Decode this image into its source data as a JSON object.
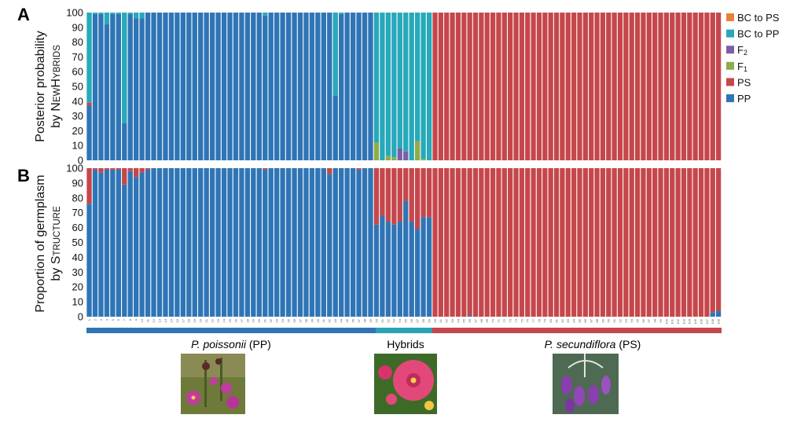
{
  "chart_data": [
    {
      "panel": "A",
      "type": "bar",
      "stacked": true,
      "ylabel": "Posterior probability",
      "ylabel_line2_prefix": "by ",
      "ylabel_line2_first": "N",
      "ylabel_line2_smallcaps_1": "EW",
      "ylabel_line2_cap_2": "H",
      "ylabel_line2_smallcaps_2": "YBRIDS",
      "ylim": [
        0,
        100
      ],
      "yticks": [
        "0",
        "10",
        "20",
        "30",
        "40",
        "50",
        "60",
        "70",
        "80",
        "90",
        "100"
      ],
      "n_individuals": 109,
      "stack_order_bottom_to_top": [
        "PP",
        "PS",
        "F1",
        "F2",
        "BC to PP",
        "BC to PS"
      ],
      "series_values_note": "percent per individual",
      "groups": [
        {
          "name": "PP",
          "range": [
            1,
            49
          ],
          "default": {
            "PP": 100
          }
        },
        {
          "name": "Hybrids",
          "range": [
            50,
            59
          ],
          "default": {
            "BC to PP": 100
          }
        },
        {
          "name": "PS",
          "range": [
            60,
            109
          ],
          "default": {
            "PS": 100
          }
        }
      ],
      "overrides": {
        "1": {
          "PP": 37,
          "PS": 2,
          "BC to PP": 61
        },
        "2": {
          "PP": 99,
          "BC to PP": 1
        },
        "3": {
          "PP": 99,
          "BC to PP": 1
        },
        "4": {
          "PP": 92,
          "BC to PP": 8
        },
        "5": {
          "PP": 99,
          "BC to PP": 1
        },
        "6": {
          "PP": 99,
          "BC to PP": 1
        },
        "7": {
          "PP": 25,
          "BC to PP": 75
        },
        "8": {
          "PP": 99,
          "BC to PP": 1
        },
        "9": {
          "PP": 96,
          "BC to PP": 4
        },
        "10": {
          "PP": 96,
          "BC to PP": 4
        },
        "31": {
          "PP": 98,
          "BC to PP": 2
        },
        "43": {
          "PP": 44,
          "BC to PP": 56
        },
        "44": {
          "PP": 99,
          "BC to PP": 1
        },
        "50": {
          "F1": 12,
          "BC to PP": 88
        },
        "51": {
          "BC to PP": 100
        },
        "52": {
          "F1": 3,
          "BC to PP": 97
        },
        "53": {
          "F1": 2,
          "BC to PP": 98
        },
        "54": {
          "F2": 8,
          "BC to PP": 92
        },
        "55": {
          "F2": 6,
          "BC to PP": 94
        },
        "56": {
          "BC to PP": 100
        },
        "57": {
          "F1": 13,
          "BC to PP": 87
        },
        "58": {
          "F1": 1,
          "BC to PP": 99
        },
        "59": {
          "BC to PP": 100
        }
      }
    },
    {
      "panel": "B",
      "type": "bar",
      "stacked": true,
      "ylabel": "Proportion of germplasm",
      "ylabel_line2_prefix": "by ",
      "ylabel_line2_first": "S",
      "ylabel_line2_smallcaps_1": "TRUCTURE",
      "ylim": [
        0,
        100
      ],
      "yticks": [
        "0",
        "10",
        "20",
        "30",
        "40",
        "50",
        "60",
        "70",
        "80",
        "90",
        "100"
      ],
      "n_individuals": 109,
      "stack_order_bottom_to_top": [
        "PP",
        "PS"
      ],
      "groups": [
        {
          "name": "PP",
          "range": [
            1,
            49
          ],
          "default": {
            "PP": 100
          }
        },
        {
          "name": "Hybrids",
          "range": [
            50,
            59
          ],
          "default": {
            "PP": 65
          }
        },
        {
          "name": "PS",
          "range": [
            60,
            109
          ],
          "default": {
            "PP": 0
          }
        }
      ],
      "overrides_pp_percent": {
        "1": 76,
        "2": 99,
        "3": 97,
        "4": 99,
        "5": 99,
        "6": 99,
        "7": 89,
        "8": 98,
        "9": 94,
        "10": 97,
        "11": 99,
        "31": 99,
        "42": 96,
        "47": 99,
        "50": 62,
        "51": 68,
        "52": 64,
        "53": 62,
        "54": 64,
        "55": 78,
        "56": 64,
        "57": 59,
        "58": 67,
        "59": 67,
        "66": 1,
        "108": 3,
        "109": 4
      },
      "xticks": [
        "1",
        "2",
        "3",
        "4",
        "5",
        "6",
        "7",
        "8",
        "9",
        "10",
        "11",
        "12",
        "13",
        "14",
        "15",
        "16",
        "17",
        "18",
        "19",
        "20",
        "21",
        "22",
        "23",
        "24",
        "25",
        "26",
        "27",
        "28",
        "29",
        "30",
        "31",
        "32",
        "33",
        "34",
        "35",
        "36",
        "37",
        "38",
        "39",
        "40",
        "41",
        "42",
        "43",
        "44",
        "45",
        "46",
        "47",
        "48",
        "49",
        "50",
        "51",
        "52",
        "53",
        "54",
        "55",
        "56",
        "57",
        "58",
        "59",
        "60",
        "61",
        "62",
        "63",
        "64",
        "65",
        "66",
        "67",
        "68",
        "69",
        "70",
        "71",
        "72",
        "73",
        "74",
        "75",
        "76",
        "77",
        "78",
        "79",
        "80",
        "81",
        "82",
        "83",
        "84",
        "85",
        "86",
        "87",
        "88",
        "89",
        "90",
        "91",
        "92",
        "93",
        "94",
        "95",
        "96",
        "97",
        "98",
        "99",
        "100",
        "101",
        "102",
        "103",
        "104",
        "105",
        "106",
        "107",
        "108",
        "109"
      ]
    }
  ],
  "legend": [
    {
      "label": "BC to PS",
      "color": "#e8813a"
    },
    {
      "label": "BC to PP",
      "color": "#27a9ba"
    },
    {
      "label": "F",
      "sub": "2",
      "color": "#7b5ea8"
    },
    {
      "label": "F",
      "sub": "1",
      "color": "#8fab4a"
    },
    {
      "label": "PS",
      "color": "#c5474b"
    },
    {
      "label": "PP",
      "color": "#2f75b6"
    }
  ],
  "colors": {
    "PP": "#2f75b6",
    "PS": "#c5474b",
    "F1": "#8fab4a",
    "F2": "#7b5ea8",
    "BC to PP": "#27a9ba",
    "BC to PS": "#e8813a",
    "group_bar_pp": "#2f75b6",
    "group_bar_ps": "#c5474b",
    "group_bar_hybrid": "#2aa3b6"
  },
  "group_labels": {
    "pp_species": "P. poissonii",
    "pp_abbr": " (PP)",
    "hybrids": "Hybrids",
    "ps_species": "P. secundiflora",
    "ps_abbr": " (PS)"
  },
  "photos": [
    {
      "name": "P. poissonii flower photo",
      "icon": "pink-flower-photo"
    },
    {
      "name": "Hybrid flower photo",
      "icon": "magenta-flower-photo"
    },
    {
      "name": "P. secundiflora flower photo",
      "icon": "purple-bell-flower-photo"
    }
  ]
}
